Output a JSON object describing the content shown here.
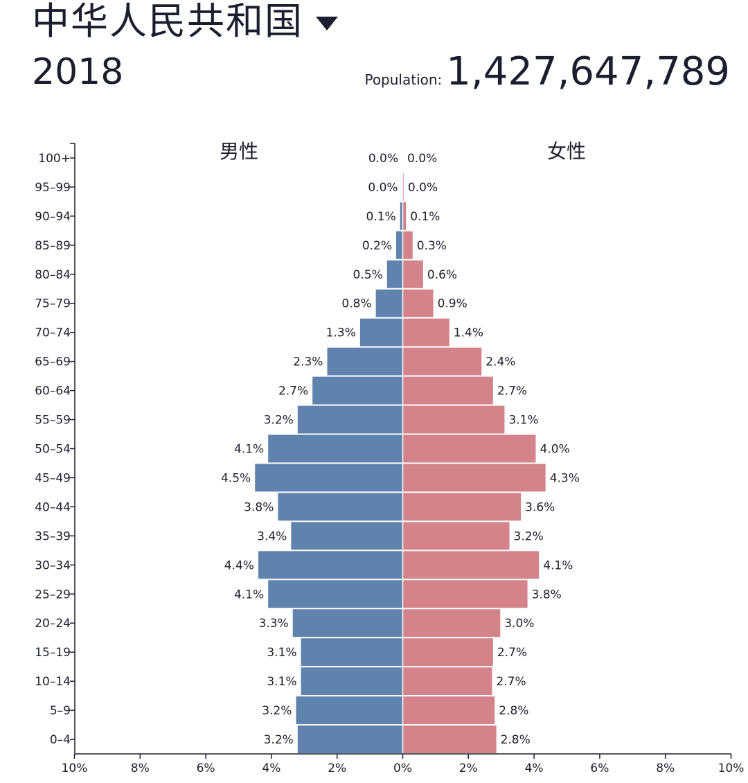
{
  "header": {
    "country": "中华人民共和国",
    "year": "2018",
    "population_label": "Population:",
    "population_value": "1,427,647,789"
  },
  "colors": {
    "male": "#6083ad",
    "female": "#d4838a",
    "text": "#1b1e2e",
    "axis": "#1b1e2e"
  },
  "icons": {
    "dropdown": "triangle-down-icon"
  },
  "chart_data": {
    "type": "bar",
    "orientation": "horizontal-population-pyramid",
    "categories": [
      "100+",
      "95-99",
      "90-94",
      "85-89",
      "80-84",
      "75-79",
      "70-74",
      "65-69",
      "60-64",
      "55-59",
      "50-54",
      "45-49",
      "40-44",
      "35-39",
      "30-34",
      "25-29",
      "20-24",
      "15-19",
      "10-14",
      "5-9",
      "0-4"
    ],
    "category_labels": [
      "100+",
      "95–99",
      "90–94",
      "85–89",
      "80–84",
      "75–79",
      "70–74",
      "65–69",
      "60–64",
      "55–59",
      "50–54",
      "45–49",
      "40–44",
      "35–39",
      "30–34",
      "25–29",
      "20–24",
      "15–19",
      "10–14",
      "5–9",
      "0–4"
    ],
    "series": [
      {
        "name": "男性",
        "values": [
          0.01,
          0.02,
          0.08,
          0.2,
          0.48,
          0.82,
          1.3,
          2.3,
          2.75,
          3.2,
          4.1,
          4.5,
          3.8,
          3.4,
          4.4,
          4.1,
          3.35,
          3.1,
          3.1,
          3.25,
          3.2
        ],
        "labels": [
          "0.0%",
          "0.0%",
          "0.1%",
          "0.2%",
          "0.5%",
          "0.8%",
          "1.3%",
          "2.3%",
          "2.7%",
          "3.2%",
          "4.1%",
          "4.5%",
          "3.8%",
          "3.4%",
          "4.4%",
          "4.1%",
          "3.3%",
          "3.1%",
          "3.1%",
          "3.2%",
          "3.2%"
        ]
      },
      {
        "name": "女性",
        "values": [
          0.01,
          0.03,
          0.1,
          0.3,
          0.62,
          0.93,
          1.42,
          2.4,
          2.75,
          3.1,
          4.05,
          4.35,
          3.6,
          3.25,
          4.15,
          3.8,
          2.97,
          2.75,
          2.72,
          2.8,
          2.85
        ],
        "labels": [
          "0.0%",
          "0.0%",
          "0.1%",
          "0.3%",
          "0.6%",
          "0.9%",
          "1.4%",
          "2.4%",
          "2.7%",
          "3.1%",
          "4.0%",
          "4.3%",
          "3.6%",
          "3.2%",
          "4.1%",
          "3.8%",
          "3.0%",
          "2.7%",
          "2.7%",
          "2.8%",
          "2.8%"
        ]
      }
    ],
    "x_ticks": [
      "10%",
      "8%",
      "6%",
      "4%",
      "2%",
      "0%",
      "2%",
      "4%",
      "6%",
      "8%",
      "10%"
    ],
    "xlim": [
      -10,
      10
    ],
    "unit": "%",
    "grid": false
  }
}
